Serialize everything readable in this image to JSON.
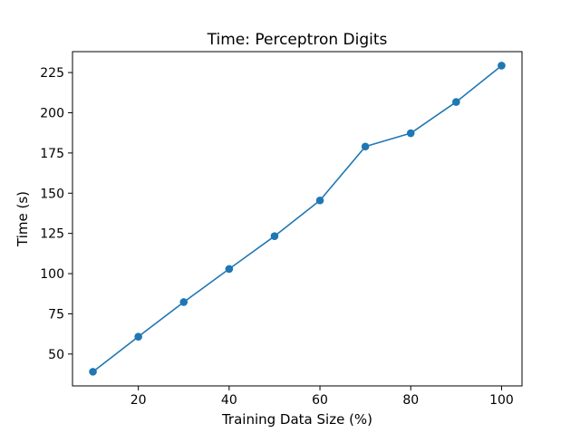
{
  "chart_data": {
    "type": "line",
    "title": "Time: Perceptron Digits",
    "xlabel": "Training Data Size (%)",
    "ylabel": "Time (s)",
    "xlim": [
      5.5,
      104.5
    ],
    "ylim": [
      30.2,
      238.0
    ],
    "xticks": [
      20,
      40,
      60,
      80,
      100
    ],
    "yticks": [
      50,
      75,
      100,
      125,
      150,
      175,
      200,
      225
    ],
    "grid": false,
    "color": "#1f77b4",
    "x": [
      10,
      20,
      30,
      40,
      50,
      60,
      70,
      80,
      90,
      100
    ],
    "y": [
      39.0,
      60.8,
      82.3,
      102.9,
      123.3,
      145.5,
      179.0,
      187.3,
      206.7,
      229.3
    ]
  }
}
